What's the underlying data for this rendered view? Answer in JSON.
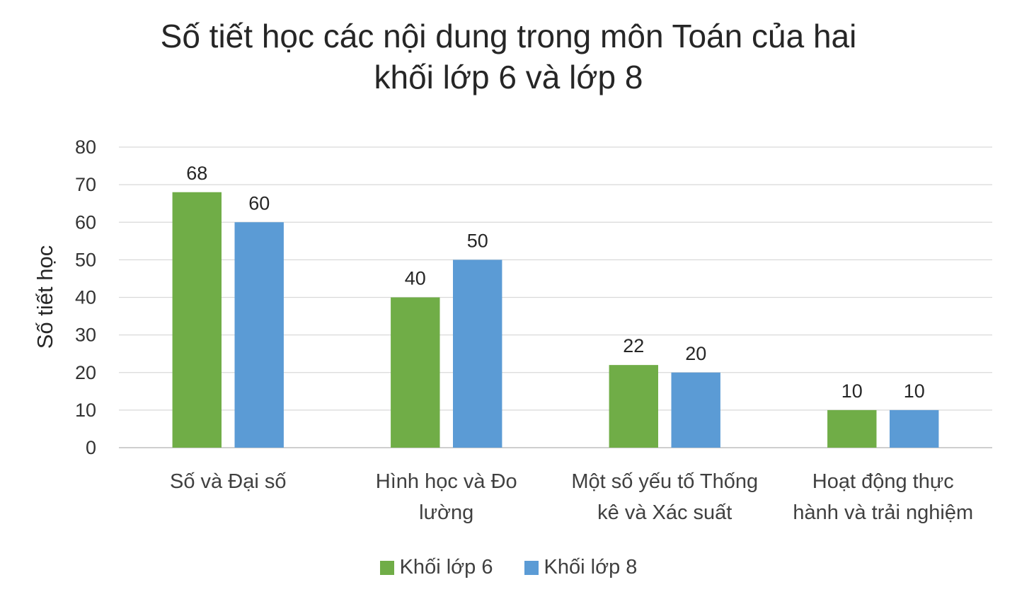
{
  "chart_data": {
    "type": "bar",
    "title": [
      "Số tiết học các nội dung trong môn Toán của hai",
      "khối lớp 6 và lớp 8"
    ],
    "ylabel": "Số tiết học",
    "xlabel": "",
    "ylim": [
      0,
      80
    ],
    "yticks": [
      0,
      10,
      20,
      30,
      40,
      50,
      60,
      70,
      80
    ],
    "grid": true,
    "legend_position": "bottom",
    "categories": [
      [
        "Số và Đại số"
      ],
      [
        "Hình học và Đo",
        "lường"
      ],
      [
        "Một số yếu tố Thống",
        "kê và Xác suất"
      ],
      [
        "Hoạt động thực",
        "hành và trải nghiệm"
      ]
    ],
    "series": [
      {
        "name": "Khối lớp 6",
        "color": "#70ad47",
        "values": [
          68,
          40,
          22,
          10
        ]
      },
      {
        "name": "Khối lớp 8",
        "color": "#5b9bd5",
        "values": [
          60,
          50,
          20,
          10
        ]
      }
    ]
  }
}
